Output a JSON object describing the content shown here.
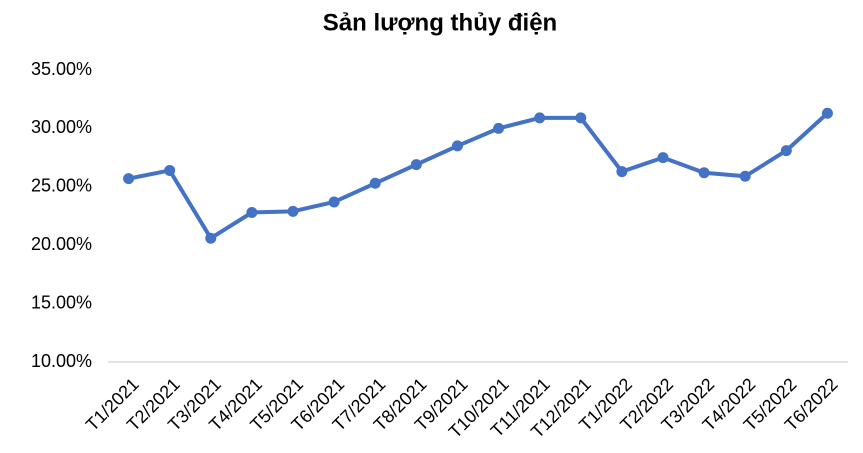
{
  "chart_data": {
    "type": "line",
    "title": "Sản lượng thủy điện",
    "categories": [
      "T1/2021",
      "T2/2021",
      "T3/2021",
      "T4/2021",
      "T5/2021",
      "T6/2021",
      "T7/2021",
      "T8/2021",
      "T9/2021",
      "T10/2021",
      "T11/2021",
      "T12/2021",
      "T1/2022",
      "T2/2022",
      "T3/2022",
      "T4/2022",
      "T5/2022",
      "T6/2022"
    ],
    "series": [
      {
        "color": "#4472c4",
        "values": [
          25.7,
          26.4,
          20.6,
          22.8,
          22.9,
          23.7,
          25.3,
          26.9,
          28.5,
          30.0,
          30.9,
          30.9,
          26.3,
          27.5,
          26.2,
          25.9,
          28.1,
          31.3
        ]
      }
    ],
    "ylim": [
      10,
      35
    ],
    "yticks": [
      {
        "value": 10,
        "label": "10.00%"
      },
      {
        "value": 15,
        "label": "15.00%"
      },
      {
        "value": 20,
        "label": "20.00%"
      },
      {
        "value": 25,
        "label": "25.00%"
      },
      {
        "value": 30,
        "label": "30.00%"
      },
      {
        "value": 35,
        "label": "35.00%"
      }
    ],
    "grid": false
  }
}
